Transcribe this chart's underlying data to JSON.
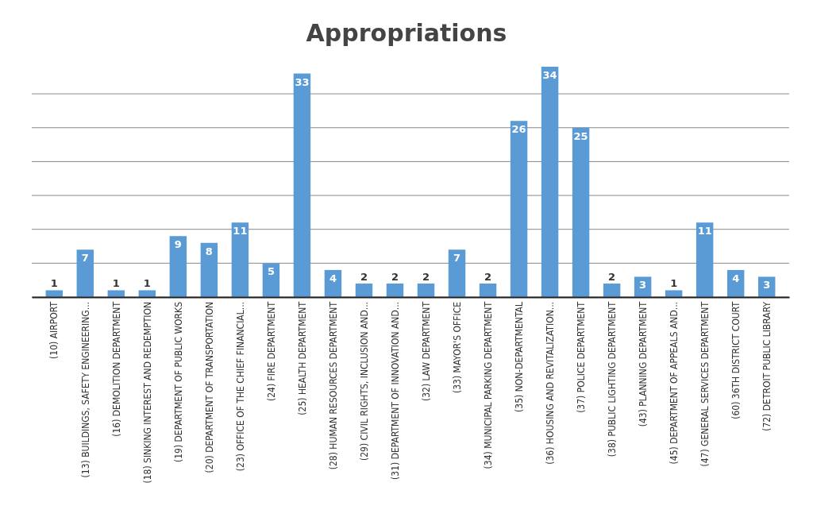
{
  "chart_data": {
    "type": "bar",
    "title": "Appropriations",
    "categories": [
      "(10) AIRPORT",
      "(13) BUILDINGS, SAFETY ENGINEERING...",
      "(16) DEMOLITION DEPARTMENT",
      "(18) SINKING INTEREST AND REDEMPTION",
      "(19) DEPARTMENT OF PUBLIC WORKS",
      "(20) DEPARTMENT OF TRANSPORTATION",
      "(23) OFFICE OF THE CHIEF FINANCIAL...",
      "(24) FIRE DEPARTMENT",
      "(25) HEALTH DEPARTMENT",
      "(28) HUMAN RESOURCES DEPARTMENT",
      "(29) CIVIL RIGHTS, INCLUSION AND...",
      "(31) DEPARTMENT OF INNOVATION AND...",
      "(32) LAW DEPARTMENT",
      "(33) MAYOR'S OFFICE",
      "(34) MUNICIPAL PARKING DEPARTMENT",
      "(35) NON-DEPARTMENTAL",
      "(36) HOUSING AND REVITALIZATION...",
      "(37) POLICE DEPARTMENT",
      "(38) PUBLIC LIGHTING DEPARTMENT",
      "(43) PLANNING DEPARTMENT",
      "(45) DEPARTMENT OF APPEALS AND...",
      "(47) GENERAL SERVICES DEPARTMENT",
      "(60) 36TH DISTRICT COURT",
      "(72) DETROIT PUBLIC LIBRARY"
    ],
    "values": [
      1,
      7,
      1,
      1,
      9,
      8,
      11,
      5,
      33,
      4,
      2,
      2,
      2,
      7,
      2,
      26,
      34,
      25,
      2,
      3,
      1,
      11,
      4,
      3
    ],
    "color": "#5b9bd5",
    "data_labels": true,
    "yticks": [
      {
        "value": 0,
        "label": null
      },
      {
        "value": 5,
        "label": null
      },
      {
        "value": 10,
        "label": null
      },
      {
        "value": 15,
        "label": null
      },
      {
        "value": 20,
        "label": null
      },
      {
        "value": 25,
        "label": null
      },
      {
        "value": 30,
        "label": null
      }
    ],
    "grid": "y",
    "tick_labels": "x"
  }
}
